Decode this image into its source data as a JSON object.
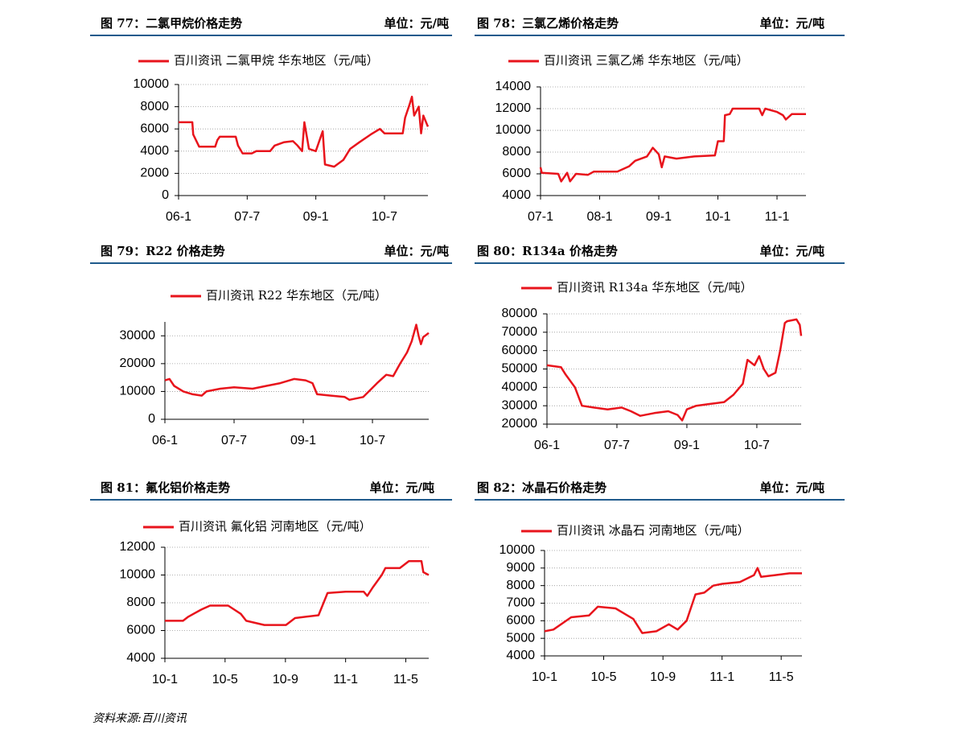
{
  "chart_data": [
    {
      "type": "line",
      "title": "图 77：二氯甲烷价格走势",
      "unit": "单位：元/吨",
      "x": [
        6.0,
        6.3,
        6.32,
        6.45,
        6.8,
        6.85,
        6.9,
        7.25,
        7.3,
        7.4,
        7.6,
        7.7,
        8.0,
        8.1,
        8.3,
        8.5,
        8.6,
        8.7,
        8.75,
        8.85,
        9.0,
        9.15,
        9.2,
        9.4,
        9.6,
        9.75,
        9.95,
        10.2,
        10.4,
        10.5,
        10.9,
        10.95,
        11.05,
        11.1,
        11.15,
        11.25,
        11.3,
        11.35,
        11.42,
        11.45
      ],
      "series": [
        {
          "name": "百川资讯 二氯甲烷 华东地区（元/吨）",
          "color": "#e8141c",
          "values": [
            6600,
            6600,
            5500,
            4400,
            4400,
            5000,
            5300,
            5300,
            4500,
            3800,
            3800,
            4000,
            4000,
            4500,
            4800,
            4900,
            4500,
            4000,
            6600,
            4200,
            4000,
            5800,
            2800,
            2600,
            3200,
            4200,
            4800,
            5500,
            6000,
            5600,
            5600,
            7000,
            8200,
            8900,
            7200,
            8000,
            5600,
            7200,
            6500,
            6200
          ]
        }
      ],
      "xlim": [
        6,
        11.45
      ],
      "ylim": [
        0,
        10000
      ],
      "xticks": [
        {
          "value": 6,
          "label": "06-1"
        },
        {
          "value": 7.5,
          "label": "07-7"
        },
        {
          "value": 9,
          "label": "09-1"
        },
        {
          "value": 10.5,
          "label": "10-7"
        }
      ],
      "yticks": [
        0,
        2000,
        4000,
        6000,
        8000,
        10000
      ],
      "grid": true,
      "legend": "top"
    },
    {
      "type": "line",
      "title": "图 78：三氯乙烯价格走势",
      "unit": "单位：元/吨",
      "x": [
        7.0,
        7.02,
        7.3,
        7.35,
        7.45,
        7.5,
        7.6,
        7.8,
        7.9,
        8.3,
        8.5,
        8.6,
        8.8,
        8.9,
        9.0,
        9.05,
        9.1,
        9.3,
        9.6,
        9.95,
        10.0,
        10.1,
        10.12,
        10.2,
        10.25,
        10.7,
        10.75,
        10.8,
        11.0,
        11.1,
        11.15,
        11.25,
        11.49
      ],
      "series": [
        {
          "name": "百川资讯 三氯乙烯 华东地区（元/吨）",
          "color": "#e8141c",
          "values": [
            6600,
            6100,
            6000,
            5300,
            6100,
            5300,
            6000,
            5900,
            6200,
            6200,
            6700,
            7200,
            7600,
            8400,
            7800,
            6600,
            7600,
            7400,
            7600,
            7700,
            9000,
            9000,
            11400,
            11500,
            12000,
            12000,
            11400,
            12000,
            11700,
            11400,
            11000,
            11500,
            11500
          ]
        }
      ],
      "xlim": [
        7,
        11.49
      ],
      "ylim": [
        4000,
        14000
      ],
      "xticks": [
        {
          "value": 7,
          "label": "07-1"
        },
        {
          "value": 8,
          "label": "08-1"
        },
        {
          "value": 9,
          "label": "09-1"
        },
        {
          "value": 10,
          "label": "10-1"
        },
        {
          "value": 11,
          "label": "11-1"
        }
      ],
      "yticks": [
        4000,
        6000,
        8000,
        10000,
        12000,
        14000
      ],
      "grid": true,
      "legend": "top"
    },
    {
      "type": "line",
      "title": "图 79：R22 价格走势",
      "unit": "单位：元/吨",
      "x": [
        6.0,
        6.1,
        6.2,
        6.4,
        6.6,
        6.8,
        6.9,
        7.2,
        7.5,
        7.9,
        8.2,
        8.5,
        8.8,
        9.05,
        9.2,
        9.3,
        9.6,
        9.9,
        10.0,
        10.3,
        10.6,
        10.8,
        10.95,
        11.1,
        11.25,
        11.35,
        11.45,
        11.5,
        11.55,
        11.6,
        11.72
      ],
      "series": [
        {
          "name": "百川资讯 R22 华东地区（元/吨）",
          "color": "#e8141c",
          "values": [
            14000,
            14500,
            12000,
            10000,
            9000,
            8500,
            10000,
            11000,
            11500,
            11000,
            12000,
            13000,
            14500,
            14000,
            13000,
            9000,
            8500,
            8000,
            7000,
            8000,
            13000,
            16000,
            15500,
            20000,
            24000,
            28000,
            34000,
            30000,
            27000,
            29500,
            31000
          ]
        }
      ],
      "xlim": [
        6,
        11.72
      ],
      "ylim": [
        0,
        35000
      ],
      "xticks": [
        {
          "value": 6,
          "label": "06-1"
        },
        {
          "value": 7.5,
          "label": "07-7"
        },
        {
          "value": 9,
          "label": "09-1"
        },
        {
          "value": 10.5,
          "label": "10-7"
        }
      ],
      "yticks": [
        0,
        10000,
        20000,
        30000
      ],
      "grid": true,
      "legend": "top"
    },
    {
      "type": "line",
      "title": "图 80：R134a 价格走势",
      "unit": "单位：元/吨",
      "x": [
        6.0,
        6.3,
        6.4,
        6.6,
        6.75,
        7.0,
        7.3,
        7.6,
        7.8,
        8.0,
        8.3,
        8.6,
        8.8,
        8.9,
        9.0,
        9.2,
        9.5,
        9.8,
        10.0,
        10.2,
        10.3,
        10.45,
        10.55,
        10.65,
        10.75,
        10.9,
        11.0,
        11.1,
        11.15,
        11.35,
        11.42,
        11.45
      ],
      "series": [
        {
          "name": "百川资讯 R134a 华东地区（元/吨）",
          "color": "#e8141c",
          "values": [
            52000,
            51000,
            47000,
            40000,
            30000,
            29000,
            28000,
            29000,
            27000,
            24500,
            26000,
            27000,
            25000,
            22000,
            28000,
            30000,
            31000,
            32000,
            36000,
            42000,
            55000,
            52000,
            57000,
            50000,
            46000,
            48000,
            60000,
            75000,
            76000,
            77000,
            74000,
            68000
          ]
        }
      ],
      "xlim": [
        6,
        11.45
      ],
      "ylim": [
        20000,
        80000
      ],
      "xticks": [
        {
          "value": 6,
          "label": "06-1"
        },
        {
          "value": 7.5,
          "label": "07-7"
        },
        {
          "value": 9,
          "label": "09-1"
        },
        {
          "value": 10.5,
          "label": "10-7"
        }
      ],
      "yticks": [
        20000,
        30000,
        40000,
        50000,
        60000,
        70000,
        80000
      ],
      "grid": true,
      "legend": "top"
    },
    {
      "type": "line",
      "title": "图 81：氟化铝价格走势",
      "unit": "单位：元/吨",
      "x": [
        10.0,
        10.1,
        10.13,
        10.2,
        10.25,
        10.35,
        10.42,
        10.45,
        10.55,
        10.67,
        10.72,
        10.85,
        10.9,
        11.0,
        11.1,
        11.12,
        11.15,
        11.2,
        11.22,
        11.3,
        11.35,
        11.42,
        11.43,
        11.46
      ],
      "series": [
        {
          "name": "百川资讯 氟化铝 河南地区（元/吨）",
          "color": "#e8141c",
          "values": [
            6700,
            6700,
            7000,
            7500,
            7800,
            7800,
            7200,
            6700,
            6400,
            6400,
            6900,
            7100,
            8700,
            8800,
            8800,
            8500,
            9100,
            10000,
            10500,
            10500,
            11000,
            11000,
            10200,
            10000
          ]
        }
      ],
      "xlim": [
        10,
        11.46
      ],
      "ylim": [
        4000,
        12000
      ],
      "xticks": [
        {
          "value": 10,
          "label": "10-1"
        },
        {
          "value": 10.333,
          "label": "10-5"
        },
        {
          "value": 10.667,
          "label": "10-9"
        },
        {
          "value": 11,
          "label": "11-1"
        },
        {
          "value": 11.333,
          "label": "11-5"
        }
      ],
      "yticks": [
        4000,
        6000,
        8000,
        10000,
        12000
      ],
      "grid": true,
      "legend": "top"
    },
    {
      "type": "line",
      "title": "图 82：冰晶石价格走势",
      "unit": "单位：元/吨",
      "x": [
        10.0,
        10.05,
        10.15,
        10.25,
        10.3,
        10.4,
        10.5,
        10.55,
        10.63,
        10.7,
        10.75,
        10.8,
        10.85,
        10.9,
        10.95,
        11.0,
        11.1,
        11.18,
        11.2,
        11.22,
        11.3,
        11.38,
        11.45
      ],
      "series": [
        {
          "name": "百川资讯 冰晶石 河南地区（元/吨）",
          "color": "#e8141c",
          "values": [
            5400,
            5500,
            6200,
            6300,
            6800,
            6700,
            6100,
            5300,
            5400,
            5800,
            5500,
            6000,
            7500,
            7600,
            8000,
            8100,
            8200,
            8600,
            9000,
            8500,
            8600,
            8700,
            8700
          ]
        }
      ],
      "xlim": [
        10,
        11.45
      ],
      "ylim": [
        4000,
        10000
      ],
      "xticks": [
        {
          "value": 10,
          "label": "10-1"
        },
        {
          "value": 10.333,
          "label": "10-5"
        },
        {
          "value": 10.667,
          "label": "10-9"
        },
        {
          "value": 11,
          "label": "11-1"
        },
        {
          "value": 11.333,
          "label": "11-5"
        }
      ],
      "yticks": [
        4000,
        5000,
        6000,
        7000,
        8000,
        9000,
        10000
      ],
      "grid": true,
      "legend": "top"
    }
  ],
  "source": "资料来源:百川资讯"
}
